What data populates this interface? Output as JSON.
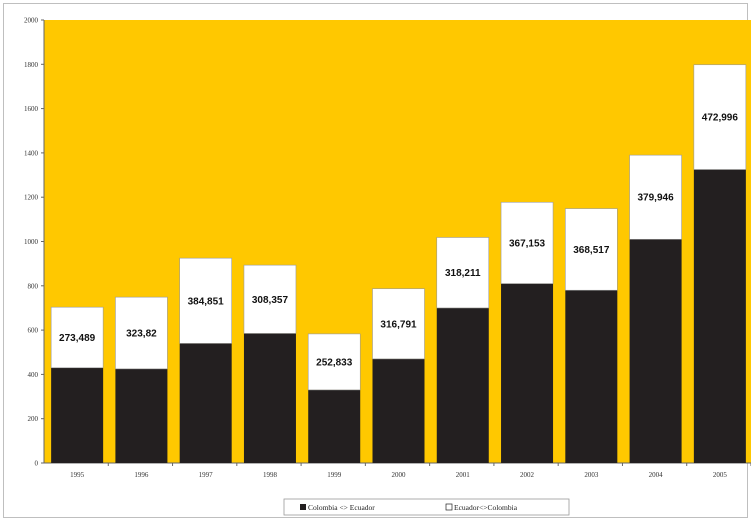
{
  "chart_data": {
    "type": "bar",
    "stacked": true,
    "categories": [
      "1995",
      "1996",
      "1997",
      "1998",
      "1999",
      "2000",
      "2001",
      "2002",
      "2003",
      "2004",
      "2005"
    ],
    "series": [
      {
        "name": "Colombia <> Ecuador",
        "color": "#231f20",
        "values": [
          430,
          425,
          540,
          585,
          330,
          470,
          700,
          810,
          780,
          1010,
          1325
        ]
      },
      {
        "name": "Ecuador<>Colombia",
        "color": "#ffffff",
        "values": [
          273.489,
          323.82,
          384.851,
          308.357,
          252.833,
          316.791,
          318.211,
          367.153,
          368.517,
          379.946,
          472.996
        ],
        "labels": [
          "273,489",
          "323,82",
          "384,851",
          "308,357",
          "252,833",
          "316,791",
          "318,211",
          "367,153",
          "368,517",
          "379,946",
          "472,996"
        ]
      }
    ],
    "y_ticks": [
      "0",
      "200",
      "400",
      "600",
      "800",
      "1000",
      "1200",
      "1400",
      "1600",
      "1800",
      "2000"
    ],
    "ylim": [
      0,
      2000
    ],
    "plot_background": "#ffc800",
    "legend": {
      "position": "bottom"
    },
    "grid": false
  }
}
